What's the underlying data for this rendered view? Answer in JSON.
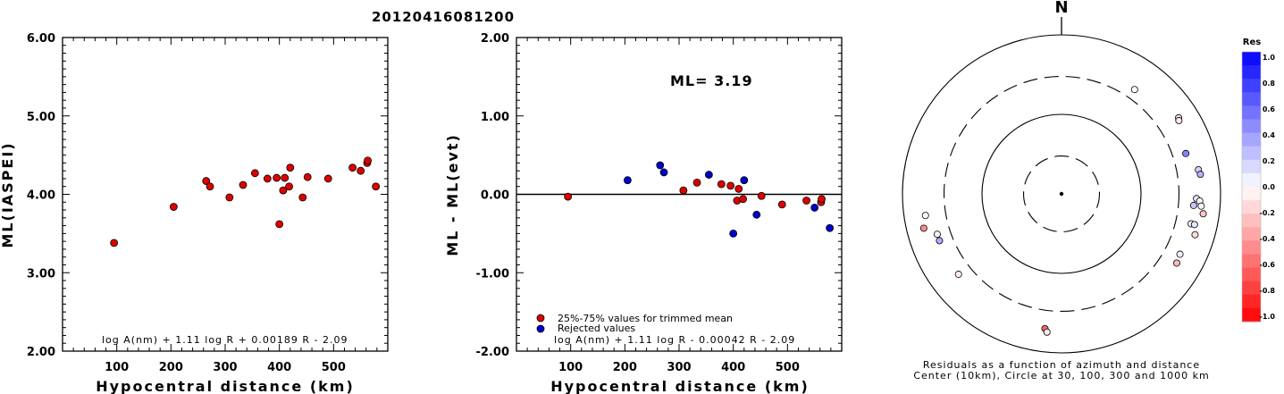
{
  "title": "20120416081200",
  "chart_data": [
    {
      "type": "scatter",
      "name": "ml",
      "xlabel": "Hypocentral distance (km)",
      "ylabel": "ML(IASPEI)",
      "xlim": [
        0,
        600
      ],
      "ylim": [
        2.0,
        6.0
      ],
      "xticks": [
        100,
        200,
        300,
        400,
        500
      ],
      "yticks": [
        2.0,
        3.0,
        4.0,
        5.0,
        6.0
      ],
      "ytick_labels": [
        "2.00",
        "3.00",
        "4.00",
        "5.00",
        "6.00"
      ],
      "formula": "log A(nm) + 1.11 log R + 0.00189 R - 2.09",
      "marker_color": "#dd0000",
      "points": [
        [
          95,
          3.38
        ],
        [
          205,
          3.84
        ],
        [
          265,
          4.17
        ],
        [
          272,
          4.1
        ],
        [
          308,
          3.96
        ],
        [
          333,
          4.12
        ],
        [
          355,
          4.27
        ],
        [
          378,
          4.2
        ],
        [
          395,
          4.21
        ],
        [
          400,
          3.62
        ],
        [
          407,
          4.05
        ],
        [
          410,
          4.21
        ],
        [
          418,
          4.1
        ],
        [
          420,
          4.34
        ],
        [
          443,
          3.96
        ],
        [
          452,
          4.22
        ],
        [
          490,
          4.2
        ],
        [
          535,
          4.34
        ],
        [
          550,
          4.3
        ],
        [
          562,
          4.4
        ],
        [
          563,
          4.43
        ],
        [
          578,
          4.1
        ]
      ]
    },
    {
      "type": "scatter",
      "name": "residual",
      "xlabel": "Hypocentral distance (km)",
      "ylabel": "ML - ML(evt)",
      "xlim": [
        0,
        600
      ],
      "ylim": [
        -2.0,
        2.0
      ],
      "xticks": [
        100,
        200,
        300,
        400,
        500
      ],
      "yticks": [
        -2.0,
        -1.0,
        0.0,
        1.0,
        2.0
      ],
      "ytick_labels": [
        "-2.00",
        "-1.00",
        "0.00",
        "1.00",
        "2.00"
      ],
      "annotation": "ML= 3.19",
      "formula": "log A(nm) + 1.11 log R - 0.00042 R - 2.09",
      "legend": [
        {
          "label": "25%-75% values for trimmed mean",
          "color": "#dd0000"
        },
        {
          "label": "Rejected values",
          "color": "#0000cc"
        }
      ],
      "series": [
        {
          "name": "25%-75% values for trimmed mean",
          "color": "#dd0000",
          "points": [
            [
              95,
              -0.03
            ],
            [
              308,
              0.05
            ],
            [
              333,
              0.15
            ],
            [
              378,
              0.13
            ],
            [
              395,
              0.11
            ],
            [
              407,
              -0.08
            ],
            [
              410,
              0.07
            ],
            [
              418,
              -0.06
            ],
            [
              452,
              -0.02
            ],
            [
              490,
              -0.13
            ],
            [
              535,
              -0.08
            ],
            [
              562,
              -0.1
            ],
            [
              563,
              -0.06
            ]
          ]
        },
        {
          "name": "Rejected values",
          "color": "#0000cc",
          "points": [
            [
              205,
              0.18
            ],
            [
              265,
              0.37
            ],
            [
              272,
              0.28
            ],
            [
              355,
              0.25
            ],
            [
              400,
              -0.5
            ],
            [
              420,
              0.18
            ],
            [
              443,
              -0.26
            ],
            [
              550,
              -0.17
            ],
            [
              578,
              -0.43
            ]
          ]
        }
      ]
    },
    {
      "type": "polar-scatter",
      "name": "azimuth",
      "north_label": "N",
      "caption_line1": "Residuals as a function of azimuth and distance",
      "caption_line2": "Center (10km), Circle at 30, 100, 300 and 1000 km",
      "rings_km": [
        30,
        100,
        300,
        1000
      ],
      "ring_styles": [
        "dashed",
        "solid",
        "dashed",
        "solid"
      ],
      "colorbar": {
        "title": "Res",
        "ticks": [
          "1.0",
          "0.8",
          "0.6",
          "0.4",
          "0.2",
          "0.0",
          "-0.2",
          "-0.4",
          "-0.6",
          "-0.8",
          "-1.0"
        ],
        "range": [
          -1.0,
          1.0
        ]
      },
      "points": [
        {
          "az": 35,
          "dist_km": 400,
          "res": 0.0
        },
        {
          "az": 57,
          "dist_km": 570,
          "res": -0.06
        },
        {
          "az": 58,
          "dist_km": 550,
          "res": -0.1
        },
        {
          "az": 72,
          "dist_km": 440,
          "res": 0.48
        },
        {
          "az": 80,
          "dist_km": 560,
          "res": 0.18
        },
        {
          "az": 82,
          "dist_km": 580,
          "res": 0.3
        },
        {
          "az": 92,
          "dist_km": 500,
          "res": 0.1
        },
        {
          "az": 93,
          "dist_km": 550,
          "res": 0.0
        },
        {
          "az": 95,
          "dist_km": 580,
          "res": 0.05
        },
        {
          "az": 95,
          "dist_km": 465,
          "res": 0.22
        },
        {
          "az": 98,
          "dist_km": 630,
          "res": -0.22
        },
        {
          "az": 103,
          "dist_km": 470,
          "res": 0.05
        },
        {
          "az": 103,
          "dist_km": 520,
          "res": 0.1
        },
        {
          "az": 107,
          "dist_km": 570,
          "res": -0.15
        },
        {
          "az": 117,
          "dist_km": 470,
          "res": 0.07
        },
        {
          "az": 121,
          "dist_km": 490,
          "res": -0.28
        },
        {
          "az": 187,
          "dist_km": 510,
          "res": -0.6
        },
        {
          "az": 186,
          "dist_km": 560,
          "res": -0.08
        },
        {
          "az": 232,
          "dist_km": 440,
          "res": -0.07
        },
        {
          "az": 249,
          "dist_km": 440,
          "res": 0.32
        },
        {
          "az": 252,
          "dist_km": 440,
          "res": 0.05
        },
        {
          "az": 256,
          "dist_km": 610,
          "res": -0.45
        },
        {
          "az": 261,
          "dist_km": 540,
          "res": 0.0
        }
      ]
    }
  ]
}
